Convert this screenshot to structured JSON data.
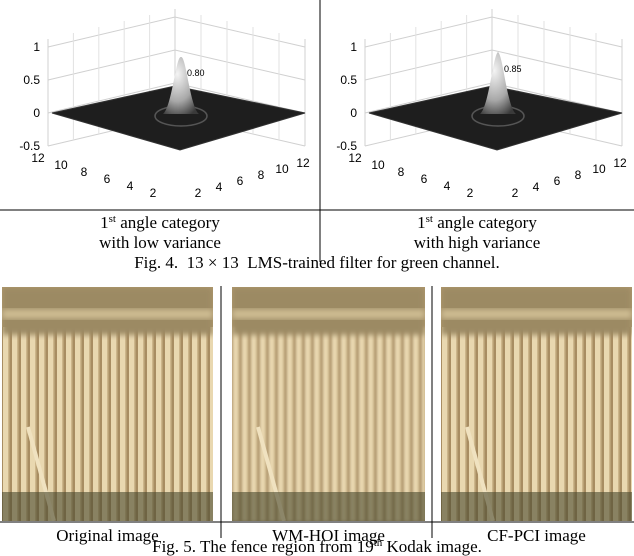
{
  "figure4": {
    "panels": [
      {
        "z_ticks": [
          "1",
          "0.5",
          "0",
          "-0.5"
        ],
        "x_ticks_left": [
          "12",
          "10",
          "8",
          "6",
          "4",
          "2"
        ],
        "x_ticks_right": [
          "2",
          "4",
          "6",
          "8",
          "10",
          "12"
        ],
        "peak_label": "0.80",
        "caption": {
          "ordinal": "1",
          "ordinal_suffix": "st",
          "line1_rest": " angle category",
          "line2": "with low variance"
        }
      },
      {
        "z_ticks": [
          "1",
          "0.5",
          "0",
          "-0.5"
        ],
        "x_ticks_left": [
          "12",
          "10",
          "8",
          "6",
          "4",
          "2"
        ],
        "x_ticks_right": [
          "2",
          "4",
          "6",
          "8",
          "10",
          "12"
        ],
        "peak_label": "0.85",
        "caption": {
          "ordinal": "1",
          "ordinal_suffix": "st",
          "line1_rest": " angle category",
          "line2": "with high variance"
        }
      }
    ],
    "caption": "Fig. 4.  13 × 13  LMS-trained filter for green channel."
  },
  "figure5": {
    "panels": [
      {
        "label": "Original image"
      },
      {
        "label": "WM-HOI image"
      },
      {
        "label": "CF-PCI image"
      }
    ],
    "caption": {
      "before": "Fig. 5. The fence region from 19",
      "suffix": "th",
      "after": " Kodak image."
    }
  }
}
